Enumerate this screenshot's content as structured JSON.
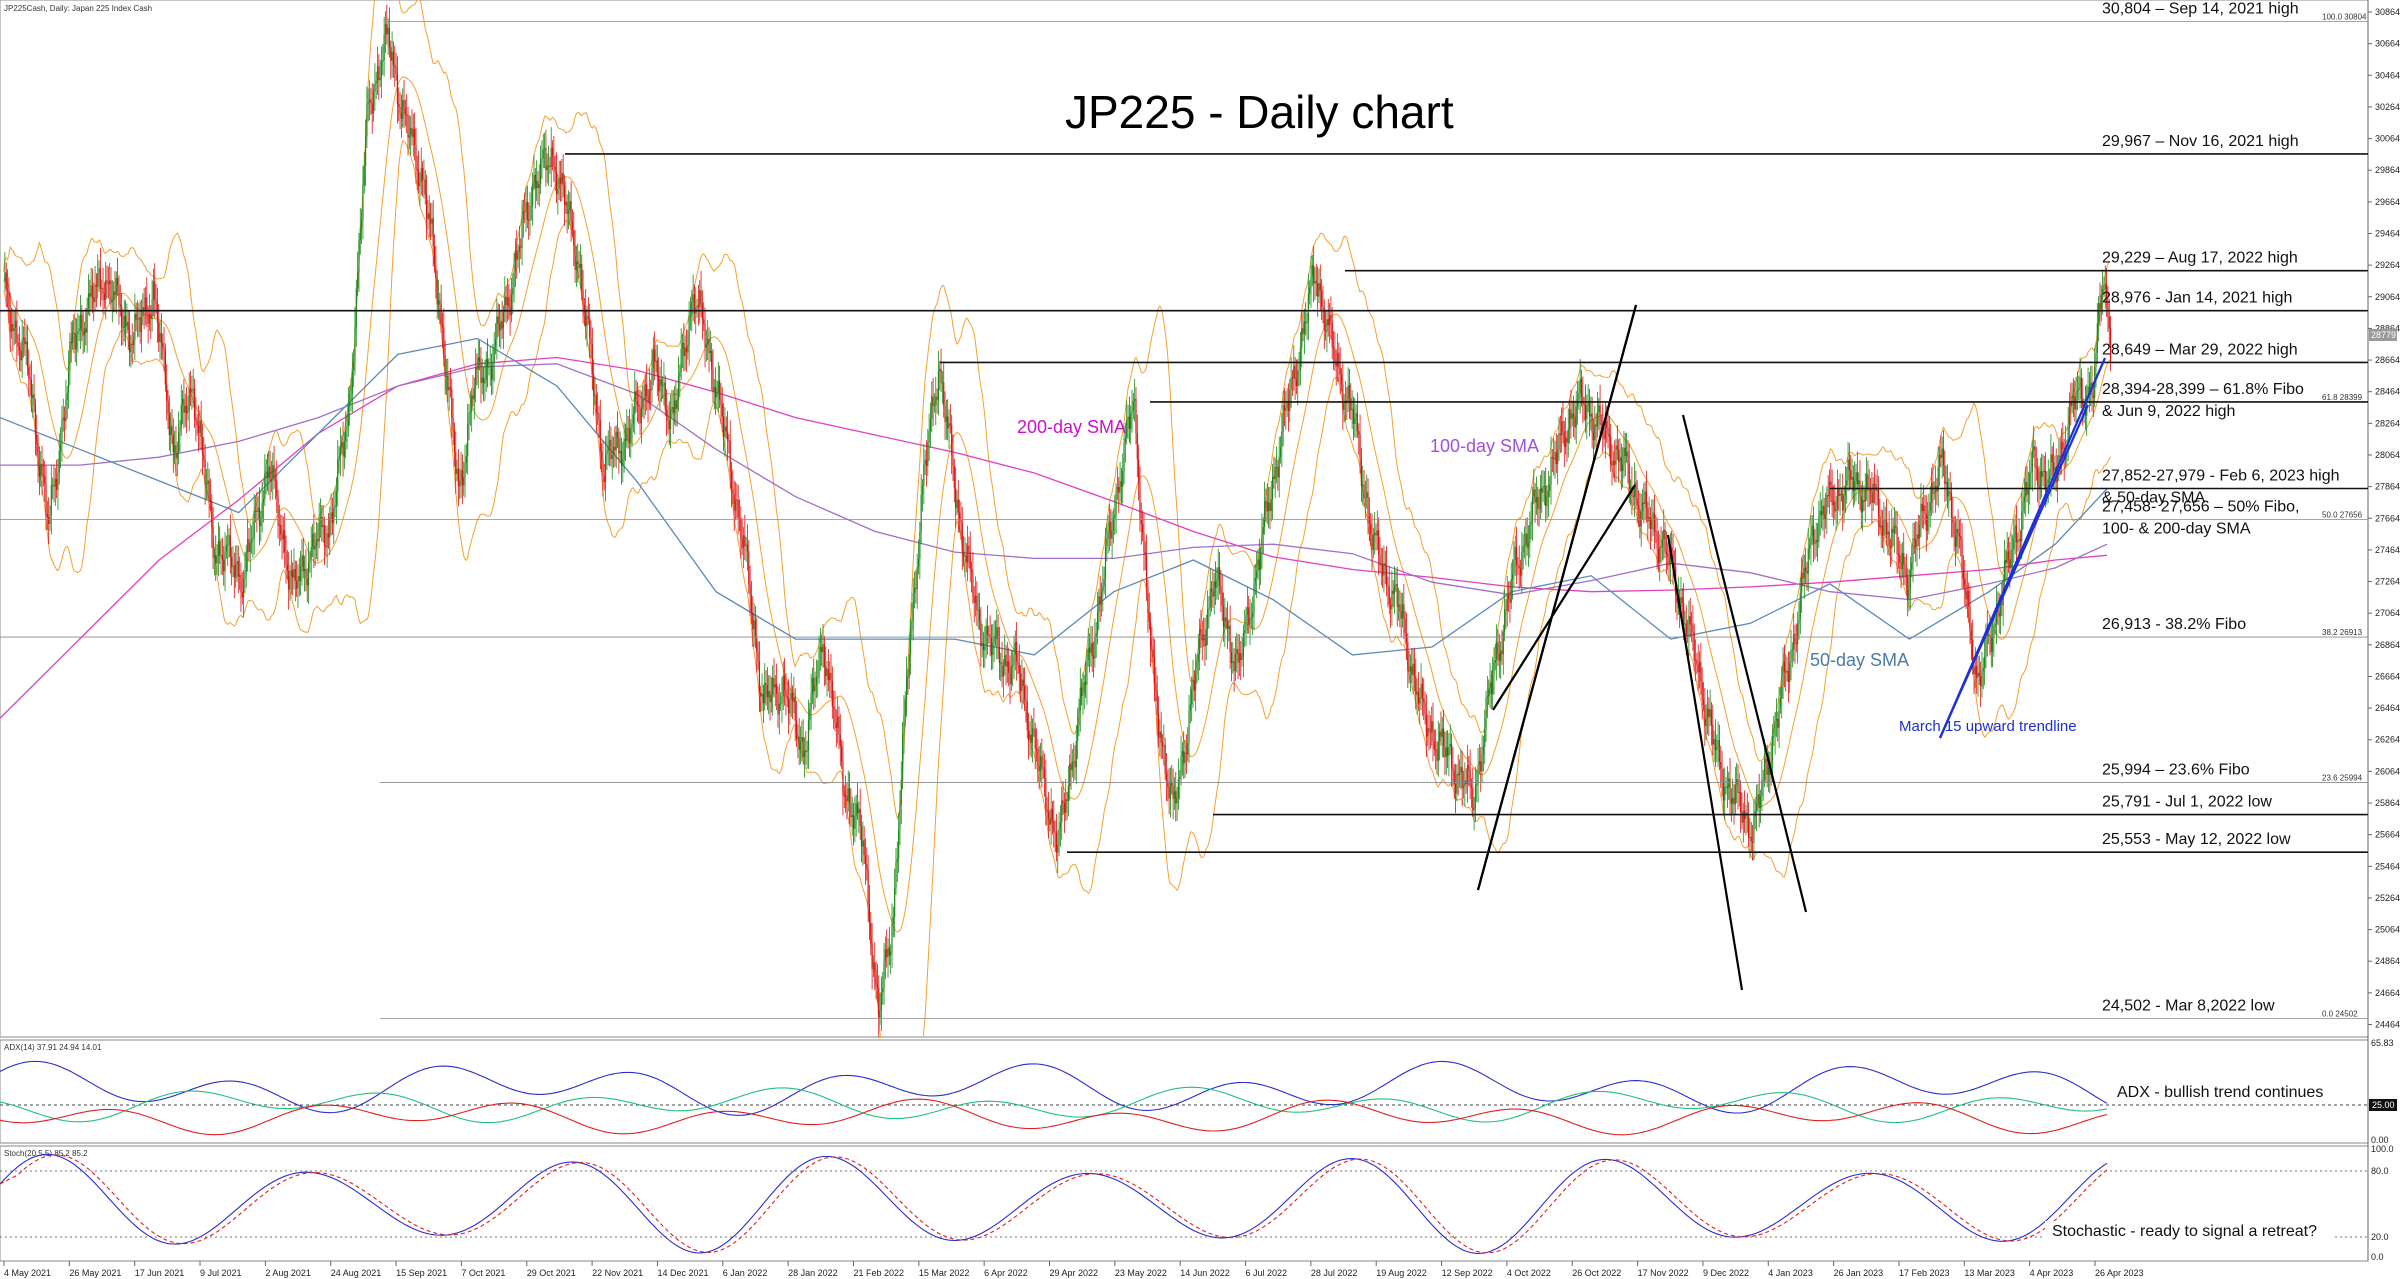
{
  "chart_data": [
    {
      "type": "line",
      "symbol_line": "JP225Cash, Daily:  Japan 225 Index Cash",
      "title": "JP225 - Daily chart",
      "ylim": [
        24404,
        30864
      ],
      "y_ticks": [
        "30864",
        "30664",
        "30464",
        "30264",
        "30064",
        "29864",
        "29664",
        "29464",
        "29264",
        "29064",
        "28864",
        "28664",
        "28464",
        "28264",
        "28064",
        "27864",
        "27664",
        "27464",
        "27264",
        "27064",
        "26864",
        "26664",
        "26464",
        "26264",
        "26064",
        "25864",
        "25664",
        "25464",
        "25264",
        "25064",
        "24864",
        "24664",
        "24464"
      ],
      "x_ticks": [
        "4 May 2021",
        "26 May 2021",
        "17 Jun 2021",
        "9 Jul 2021",
        "2 Aug 2021",
        "24 Aug 2021",
        "15 Sep 2021",
        "7 Oct 2021",
        "29 Oct 2021",
        "22 Nov 2021",
        "14 Dec 2021",
        "6 Jan 2022",
        "28 Jan 2022",
        "21 Feb 2022",
        "15 Mar 2022",
        "6 Apr 2022",
        "29 Apr 2022",
        "23 May 2022",
        "14 Jun 2022",
        "6 Jul 2022",
        "28 Jul 2022",
        "19 Aug 2022",
        "12 Sep 2022",
        "4 Oct 2022",
        "26 Oct 2022",
        "17 Nov 2022",
        "9 Dec 2022",
        "4 Jan 2023",
        "26 Jan 2023",
        "17 Feb 2023",
        "13 Mar 2023",
        "4 Apr 2023",
        "26 Apr 2023"
      ],
      "current_price": "28779",
      "current_price_box": "28779",
      "fibo_labels": [
        "100.0 30804",
        "61.8 28399",
        "50.0 27656",
        "38.2 26913",
        "23.6 25994",
        "0.0 24502"
      ],
      "levels": [
        {
          "value": 30804,
          "label": "30,804 – Sep 14, 2021 high"
        },
        {
          "value": 29967,
          "label": "29,967 – Nov 16, 2021 high"
        },
        {
          "value": 29229,
          "label": "29,229 – Aug 17, 2022 high"
        },
        {
          "value": 28976,
          "label": "28,976 - Jan 14, 2021 high"
        },
        {
          "value": 28649,
          "label": "28,649 – Mar 29, 2022 high"
        },
        {
          "value": 28399,
          "label": "28,394-28,399 – 61.8% Fibo",
          "label2": "& Jun 9, 2022 high"
        },
        {
          "value": 27852,
          "label": "27,852-27,979 - Feb 6, 2023 high",
          "label2": "& 50-day SMA"
        },
        {
          "value": 27656,
          "label": "27,458- 27,656 – 50% Fibo,",
          "label2": "100- & 200-day SMA"
        },
        {
          "value": 26913,
          "label": "26,913 - 38.2% Fibo"
        },
        {
          "value": 25994,
          "label": "25,994 – 23.6% Fibo"
        },
        {
          "value": 25791,
          "label": "25,791 - Jul 1, 2022 low"
        },
        {
          "value": 25553,
          "label": "25,553 - May 12, 2022 low"
        },
        {
          "value": 24502,
          "label": "24,502 - Mar 8,2022 low"
        }
      ],
      "annotations": {
        "sma200": "200-day SMA",
        "sma100": "100-day SMA",
        "sma50": "50-day SMA",
        "trendline": "March 15 upward trendline"
      },
      "colors": {
        "bull": "#1a8a1a",
        "bear": "#dd1111",
        "bands": "#f5a030",
        "sma200": "#e040c0",
        "sma100": "#a070c8",
        "sma50": "#5a8ab8",
        "trendline": "#1c2fd8",
        "sma50_label": "#4a7aa8",
        "sma200_label": "#cc11cc",
        "sma100_label": "#a050e0"
      },
      "series": [
        {
          "name": "200-day SMA",
          "values": [
            [
              0,
              26400
            ],
            [
              60,
              26900
            ],
            [
              120,
              27400
            ],
            [
              180,
              27780
            ],
            [
              240,
              28200
            ],
            [
              300,
              28500
            ],
            [
              360,
              28640
            ],
            [
              420,
              28680
            ],
            [
              480,
              28600
            ],
            [
              540,
              28460
            ],
            [
              600,
              28300
            ],
            [
              660,
              28190
            ],
            [
              720,
              28080
            ],
            [
              780,
              27950
            ],
            [
              840,
              27770
            ],
            [
              900,
              27580
            ],
            [
              960,
              27420
            ],
            [
              1020,
              27340
            ],
            [
              1080,
              27290
            ],
            [
              1140,
              27230
            ],
            [
              1200,
              27200
            ],
            [
              1260,
              27210
            ],
            [
              1320,
              27230
            ],
            [
              1380,
              27260
            ],
            [
              1440,
              27300
            ],
            [
              1500,
              27340
            ],
            [
              1550,
              27400
            ],
            [
              1589,
              27430
            ]
          ]
        },
        {
          "name": "100-day SMA",
          "values": [
            [
              0,
              28000
            ],
            [
              60,
              28000
            ],
            [
              120,
              28050
            ],
            [
              180,
              28150
            ],
            [
              240,
              28300
            ],
            [
              300,
              28500
            ],
            [
              360,
              28620
            ],
            [
              420,
              28640
            ],
            [
              480,
              28450
            ],
            [
              540,
              28100
            ],
            [
              600,
              27800
            ],
            [
              660,
              27580
            ],
            [
              720,
              27450
            ],
            [
              780,
              27410
            ],
            [
              840,
              27410
            ],
            [
              900,
              27480
            ],
            [
              960,
              27500
            ],
            [
              1020,
              27440
            ],
            [
              1080,
              27260
            ],
            [
              1140,
              27180
            ],
            [
              1200,
              27270
            ],
            [
              1260,
              27380
            ],
            [
              1320,
              27320
            ],
            [
              1380,
              27200
            ],
            [
              1440,
              27150
            ],
            [
              1500,
              27250
            ],
            [
              1550,
              27350
            ],
            [
              1589,
              27500
            ]
          ]
        },
        {
          "name": "50-day SMA",
          "values": [
            [
              0,
              28300
            ],
            [
              60,
              28100
            ],
            [
              120,
              27900
            ],
            [
              180,
              27700
            ],
            [
              240,
              28200
            ],
            [
              300,
              28700
            ],
            [
              360,
              28800
            ],
            [
              420,
              28500
            ],
            [
              480,
              27900
            ],
            [
              540,
              27200
            ],
            [
              600,
              26900
            ],
            [
              660,
              26900
            ],
            [
              720,
              26900
            ],
            [
              780,
              26800
            ],
            [
              840,
              27200
            ],
            [
              900,
              27400
            ],
            [
              960,
              27150
            ],
            [
              1020,
              26800
            ],
            [
              1080,
              26850
            ],
            [
              1140,
              27200
            ],
            [
              1200,
              27300
            ],
            [
              1260,
              26900
            ],
            [
              1320,
              27000
            ],
            [
              1380,
              27250
            ],
            [
              1440,
              26900
            ],
            [
              1500,
              27200
            ],
            [
              1550,
              27500
            ],
            [
              1589,
              27850
            ]
          ]
        }
      ]
    },
    {
      "type": "line",
      "title": "ADX(14) 37.91 24.94 14.01",
      "ylim": [
        0,
        65.83
      ],
      "y_ticks": [
        "65.83",
        "25.00",
        "0.00"
      ],
      "annotation": "ADX - bullish trend continues",
      "series": [
        {
          "name": "ADX",
          "values": [
            37.91
          ]
        },
        {
          "name": "+DI",
          "values": [
            24.94
          ]
        },
        {
          "name": "-DI",
          "values": [
            14.01
          ]
        }
      ]
    },
    {
      "type": "line",
      "title": "Stoch(20,5,5) 85.2 85.2",
      "ylim": [
        0,
        100
      ],
      "y_ticks": [
        "100.0",
        "80.0",
        "20.0",
        "0.0"
      ],
      "annotation": "Stochastic - ready to signal a retreat?",
      "series": [
        {
          "name": "%K",
          "values": [
            85.2
          ]
        },
        {
          "name": "%D",
          "values": [
            85.2
          ]
        }
      ]
    }
  ]
}
